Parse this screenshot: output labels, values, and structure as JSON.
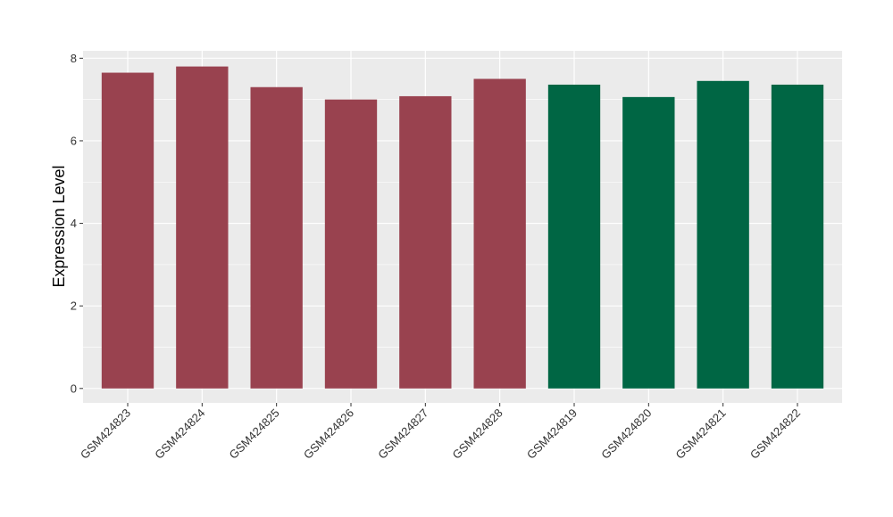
{
  "chart_data": {
    "type": "bar",
    "categories": [
      "GSM424823",
      "GSM424824",
      "GSM424825",
      "GSM424826",
      "GSM424827",
      "GSM424828",
      "GSM424819",
      "GSM424820",
      "GSM424821",
      "GSM424822"
    ],
    "values": [
      7.65,
      7.8,
      7.3,
      7.0,
      7.08,
      7.5,
      7.36,
      7.06,
      7.45,
      7.36
    ],
    "groups": [
      0,
      0,
      0,
      0,
      0,
      0,
      1,
      1,
      1,
      1
    ],
    "group_colors": [
      "#99424f",
      "#006644"
    ],
    "title": "",
    "xlabel": "",
    "ylabel": "Expression Level",
    "ylim": [
      -0.35,
      8.18
    ],
    "yticks": [
      0,
      2,
      4,
      6,
      8
    ],
    "ytick_labels": [
      "0",
      "2",
      "4",
      "6",
      "8"
    ],
    "grid": true,
    "legend": "none",
    "panel_background": "#ebebeb",
    "grid_color": "#ffffff"
  }
}
